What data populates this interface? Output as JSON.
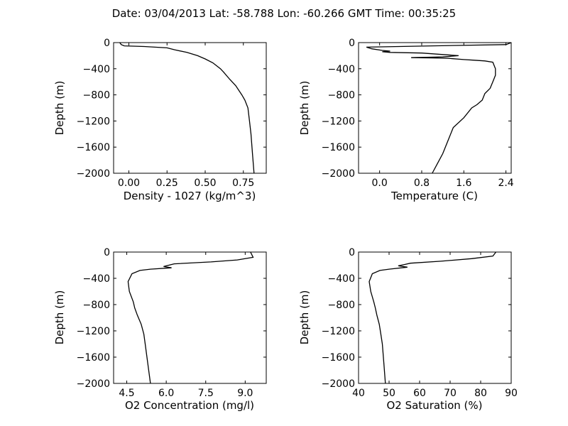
{
  "figure": {
    "suptitle": "Date: 03/04/2013  Lat:  -58.788 Lon:  -60.266  GMT Time: 00:35:25"
  },
  "chart_data": [
    {
      "type": "line",
      "id": "density",
      "xlabel": "Density - 1027 (kg/m^3)",
      "ylabel": "Depth (m)",
      "xlim": [
        -0.1,
        0.9
      ],
      "ylim": [
        -2000,
        0
      ],
      "xticks": [
        0.0,
        0.25,
        0.5,
        0.75
      ],
      "xtick_labels": [
        "0.00",
        "0.25",
        "0.50",
        "0.75"
      ],
      "yticks": [
        0,
        -400,
        -800,
        -1200,
        -1600,
        -2000
      ],
      "ytick_labels": [
        "0",
        "−400",
        "−800",
        "−1200",
        "−1600",
        "−2000"
      ],
      "color": "#000000",
      "series": [
        {
          "x": [
            -0.06,
            -0.05,
            -0.03,
            0.1,
            0.25,
            0.3,
            0.38,
            0.45,
            0.5,
            0.55,
            0.6,
            0.62,
            0.66,
            0.7,
            0.74,
            0.76,
            0.78,
            0.79,
            0.8,
            0.81,
            0.82
          ],
          "y": [
            0,
            -30,
            -50,
            -60,
            -80,
            -110,
            -150,
            -200,
            -250,
            -310,
            -400,
            -450,
            -560,
            -660,
            -800,
            -880,
            -1000,
            -1200,
            -1400,
            -1700,
            -2000
          ]
        }
      ]
    },
    {
      "type": "line",
      "id": "temperature",
      "xlabel": "Temperature (C)",
      "ylabel": "Depth (m)",
      "xlim": [
        -0.4,
        2.5
      ],
      "ylim": [
        -2000,
        0
      ],
      "xticks": [
        0.0,
        0.8,
        1.6,
        2.4
      ],
      "xtick_labels": [
        "0.0",
        "0.8",
        "1.6",
        "2.4"
      ],
      "yticks": [
        0,
        -400,
        -800,
        -1200,
        -1600,
        -2000
      ],
      "ytick_labels": [
        "0",
        "−400",
        "−800",
        "−1200",
        "−1600",
        "−2000"
      ],
      "color": "#000000",
      "series": [
        {
          "x": [
            2.5,
            2.4,
            1.0,
            -0.25,
            -0.15,
            0.05,
            0.2,
            0.05,
            0.2,
            0.8,
            1.5,
            1.2,
            0.6,
            1.0,
            1.3,
            1.6,
            1.8,
            2.0,
            2.15,
            2.2,
            2.2,
            2.15,
            2.1,
            2.0,
            1.95,
            1.85,
            1.75,
            1.6,
            1.4,
            1.3,
            1.2,
            1.1,
            1.0
          ],
          "y": [
            0,
            -30,
            -50,
            -70,
            -95,
            -120,
            -130,
            -140,
            -150,
            -160,
            -200,
            -220,
            -230,
            -235,
            -240,
            -260,
            -270,
            -280,
            -300,
            -400,
            -500,
            -600,
            -700,
            -780,
            -880,
            -950,
            -1000,
            -1150,
            -1300,
            -1500,
            -1700,
            -1850,
            -2000
          ]
        }
      ]
    },
    {
      "type": "line",
      "id": "o2-concentration",
      "xlabel": "O2 Concentration (mg/l)",
      "ylabel": "Depth (m)",
      "xlim": [
        4.0,
        9.8
      ],
      "ylim": [
        -2000,
        0
      ],
      "xticks": [
        4.5,
        6.0,
        7.5,
        9.0
      ],
      "xtick_labels": [
        "4.5",
        "6.0",
        "7.5",
        "9.0"
      ],
      "yticks": [
        0,
        -400,
        -800,
        -1200,
        -1600,
        -2000
      ],
      "ytick_labels": [
        "0",
        "−400",
        "−800",
        "−1200",
        "−1600",
        "−2000"
      ],
      "color": "#000000",
      "series": [
        {
          "x": [
            9.2,
            9.3,
            8.7,
            7.7,
            6.3,
            6.1,
            5.9,
            6.2,
            5.4,
            5.0,
            4.7,
            4.55,
            4.6,
            4.75,
            4.8,
            4.9,
            5.05,
            5.15,
            5.2,
            5.3,
            5.4
          ],
          "y": [
            0,
            -80,
            -120,
            -150,
            -180,
            -200,
            -220,
            -240,
            -260,
            -280,
            -330,
            -450,
            -600,
            -760,
            -850,
            -960,
            -1100,
            -1250,
            -1400,
            -1700,
            -2000
          ]
        }
      ]
    },
    {
      "type": "line",
      "id": "o2-saturation",
      "xlabel": "O2 Saturation (%)",
      "ylabel": "Depth (m)",
      "xlim": [
        40,
        90
      ],
      "ylim": [
        -2000,
        0
      ],
      "xticks": [
        40,
        50,
        60,
        70,
        80,
        90
      ],
      "xtick_labels": [
        "40",
        "50",
        "60",
        "70",
        "80",
        "90"
      ],
      "yticks": [
        0,
        -400,
        -800,
        -1200,
        -1600,
        -2000
      ],
      "ytick_labels": [
        "0",
        "−400",
        "−800",
        "−1200",
        "−1600",
        "−2000"
      ],
      "color": "#000000",
      "series": [
        {
          "x": [
            85,
            84,
            77,
            67,
            57,
            55,
            53,
            56,
            50,
            47,
            44.5,
            43.5,
            44,
            45,
            45.5,
            46,
            46.8,
            47.3,
            47.8,
            48.3,
            48.8
          ],
          "y": [
            0,
            -60,
            -100,
            -140,
            -170,
            -190,
            -210,
            -230,
            -260,
            -280,
            -330,
            -450,
            -600,
            -760,
            -850,
            -960,
            -1100,
            -1250,
            -1400,
            -1700,
            -2000
          ]
        }
      ]
    }
  ]
}
